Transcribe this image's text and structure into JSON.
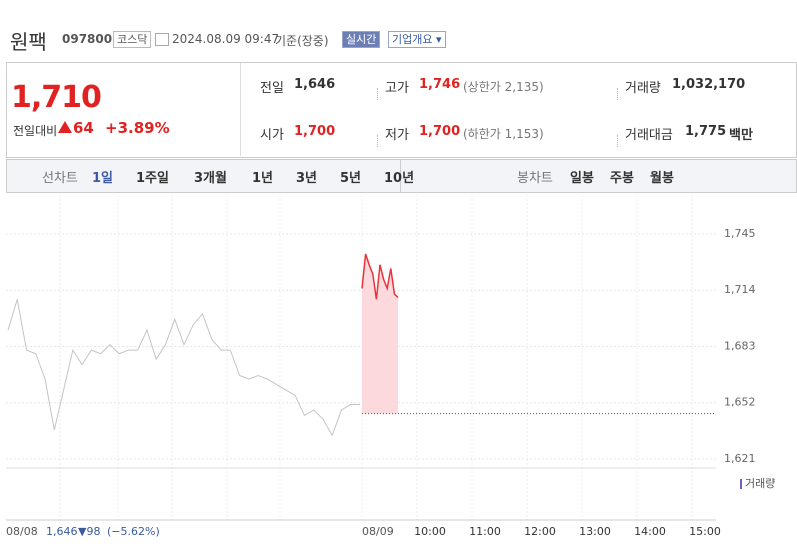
{
  "header": {
    "name": "원팩",
    "code": "097800",
    "market": "코스닥",
    "time": "2024.08.09 09:47",
    "basis": "기준(장중)",
    "realtime": "실시간",
    "company": "기업개요"
  },
  "quote": {
    "price": "1,710",
    "change_label": "전일대비",
    "change": "64",
    "change_pct": "+3.89%"
  },
  "stats": [
    {
      "label": "전일",
      "value": "1,646"
    },
    {
      "label": "고가",
      "value": "1,746",
      "note": "(상한가 2,135)"
    },
    {
      "label": "거래량",
      "value": "1,032,170"
    },
    {
      "label": "시가",
      "value": "1,700"
    },
    {
      "label": "저가",
      "value": "1,700",
      "note": "(하한가 1,153)"
    },
    {
      "label": "거래대금",
      "value": "1,775",
      "unit": "백만"
    }
  ],
  "tabs": {
    "line_label": "선차트",
    "periods": [
      "1일",
      "1주일",
      "3개월",
      "1년",
      "3년",
      "5년",
      "10년"
    ],
    "candle_label": "봉차트",
    "candles": [
      "일봉",
      "주봉",
      "월봉"
    ]
  },
  "chart": {
    "type": "line",
    "ylim": [
      1616,
      1761
    ],
    "yticks": [
      {
        "value": 1745,
        "label": "1,745"
      },
      {
        "value": 1714,
        "label": "1,714"
      },
      {
        "value": 1683,
        "label": "1,683"
      },
      {
        "value": 1652,
        "label": "1,652"
      },
      {
        "value": 1621,
        "label": "1,621"
      }
    ],
    "base": 1646,
    "series": [
      {
        "name": "08/08",
        "color": "#c4c4c4",
        "values": [
          1692,
          1709,
          1681,
          1679,
          1665,
          1637,
          1659,
          1681,
          1673,
          1681,
          1679,
          1684,
          1679,
          1681,
          1681,
          1692,
          1676,
          1684,
          1698,
          1684,
          1695,
          1701,
          1687,
          1681,
          1681,
          1667,
          1665,
          1667,
          1665,
          1662,
          1659,
          1656,
          1645,
          1648,
          1643,
          1634,
          1648,
          1651,
          1651
        ]
      },
      {
        "name": "08/09",
        "color": "#e8333b",
        "values": [
          1715,
          1734,
          1728,
          1723,
          1709,
          1728,
          1720,
          1715,
          1726,
          1712,
          1710
        ]
      }
    ],
    "volume_label": "거래량",
    "x_labels": [
      "10:00",
      "11:00",
      "12:00",
      "13:00",
      "14:00",
      "15:00"
    ],
    "prev_day": {
      "close": "1,646",
      "change": "▼98",
      "change_pct": "(−5.62%)"
    }
  }
}
